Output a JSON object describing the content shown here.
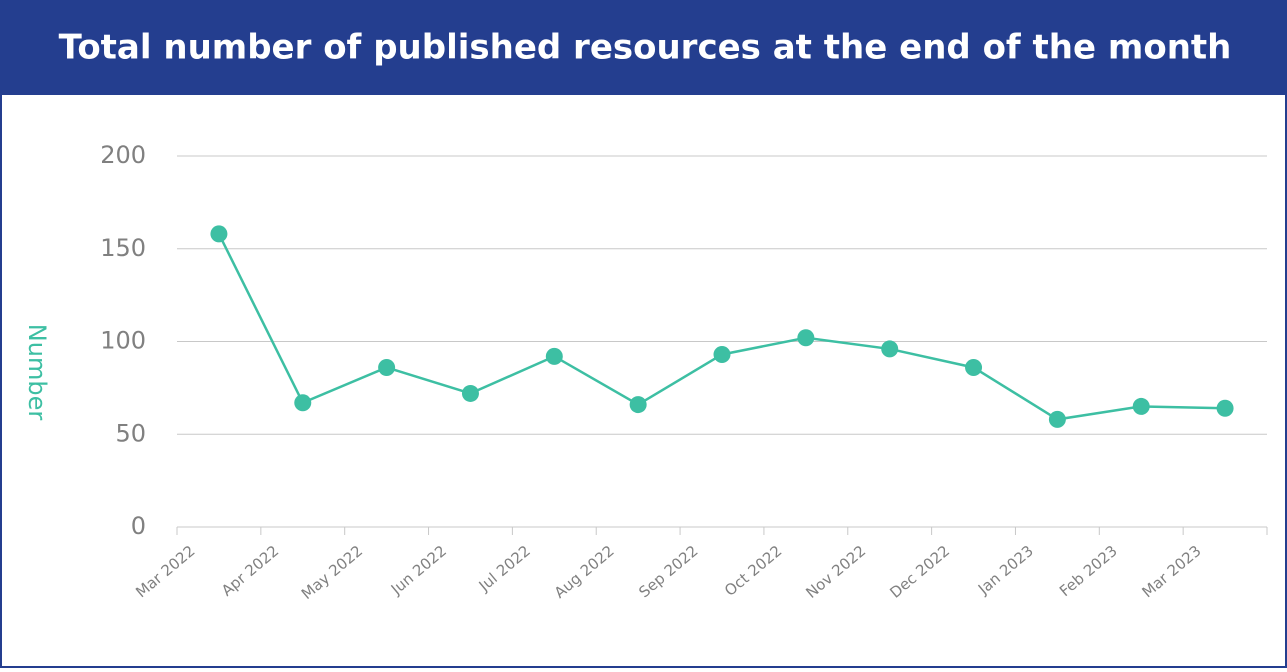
{
  "chart_data": {
    "type": "line",
    "title": "Total number of published resources at the end of the month",
    "y_label": "Number",
    "categories": [
      "Mar 2022",
      "Apr 2022",
      "May 2022",
      "Jun 2022",
      "Jul 2022",
      "Aug 2022",
      "Sep 2022",
      "Oct 2022",
      "Nov 2022",
      "Dec 2022",
      "Jan 2023",
      "Feb 2023",
      "Mar 2023"
    ],
    "series": [
      {
        "name": "Number",
        "color": "#3dbfa3",
        "values": [
          158,
          67,
          86,
          72,
          92,
          66,
          93,
          102,
          96,
          86,
          58,
          65,
          64
        ]
      }
    ],
    "ylim": [
      0,
      200
    ],
    "yticks": [
      0,
      50,
      100,
      150,
      200
    ],
    "grid": true
  }
}
